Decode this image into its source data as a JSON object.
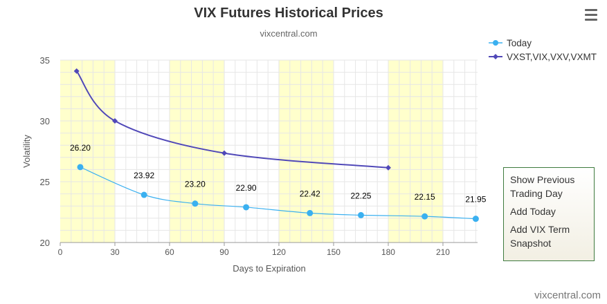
{
  "chart_data": {
    "type": "line",
    "title": "VIX Futures Historical Prices",
    "subtitle": "vixcentral.com",
    "xlabel": "Days to Expiration",
    "ylabel": "Volatility",
    "xlim": [
      0,
      229
    ],
    "ylim": [
      20,
      35
    ],
    "x_ticks": [
      0,
      30,
      60,
      90,
      120,
      150,
      180,
      210
    ],
    "y_ticks": [
      20,
      25,
      30,
      35
    ],
    "highlight_bands": [
      [
        0,
        30
      ],
      [
        60,
        90
      ],
      [
        120,
        150
      ],
      [
        180,
        210
      ]
    ],
    "grid": true,
    "legend_position": "top-right",
    "series": [
      {
        "name": "Today",
        "color": "#3ab0f0",
        "marker": "circle",
        "x": [
          11,
          46,
          74,
          102,
          137,
          165,
          200,
          228
        ],
        "y": [
          26.2,
          23.92,
          23.2,
          22.9,
          22.42,
          22.25,
          22.15,
          21.95
        ],
        "labels": [
          "26.20",
          "23.92",
          "23.20",
          "22.90",
          "22.42",
          "22.25",
          "22.15",
          "21.95"
        ]
      },
      {
        "name": "VXST,VIX,VXV,VXMT",
        "color": "#5048b8",
        "marker": "diamond",
        "x": [
          9,
          30,
          90,
          180
        ],
        "y": [
          34.1,
          30.0,
          27.35,
          26.15
        ]
      }
    ]
  },
  "menu": {
    "icon": "hamburger-menu-icon"
  },
  "panel": {
    "items": [
      "Show Previous Trading Day",
      "Add Today",
      "Add VIX Term Snapshot"
    ]
  },
  "credit": "vixcentral.com"
}
